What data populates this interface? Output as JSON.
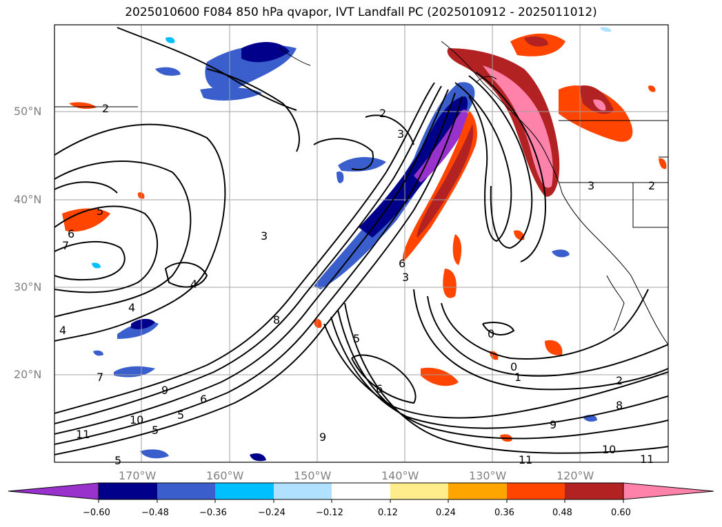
{
  "title": "2025010600 F084 850 hPa qvapor, IVT Landfall PC (2025010912 - 2025011012)",
  "lat_labels": [
    "50°N",
    "40°N",
    "30°N",
    "20°N"
  ],
  "lon_labels": [
    "170°W",
    "160°W",
    "150°W",
    "140°W",
    "130°W",
    "120°W"
  ],
  "colorbar": {
    "colors": [
      "#9932CC",
      "#00008B",
      "#3A5FCD",
      "#00BFFF",
      "#B0E2FF",
      "#FFFFFF",
      "#FFEC8B",
      "#FFA500",
      "#FF4500",
      "#B22222",
      "#FF82AB"
    ],
    "tick_labels": [
      "−0.60",
      "−0.48",
      "−0.36",
      "−0.24",
      "−0.12",
      "0.12",
      "0.24",
      "0.36",
      "0.48",
      "0.60"
    ],
    "extend": "both"
  },
  "contour_labels": [
    "2",
    "2",
    "3",
    "3",
    "3",
    "4",
    "4",
    "4",
    "5",
    "5",
    "5",
    "6",
    "6",
    "6",
    "7",
    "7",
    "8",
    "8",
    "9",
    "9",
    "9",
    "10",
    "10",
    "11",
    "11",
    "11",
    "0",
    "0",
    "1",
    "2",
    "5",
    "6",
    "3",
    "2",
    "5"
  ]
}
